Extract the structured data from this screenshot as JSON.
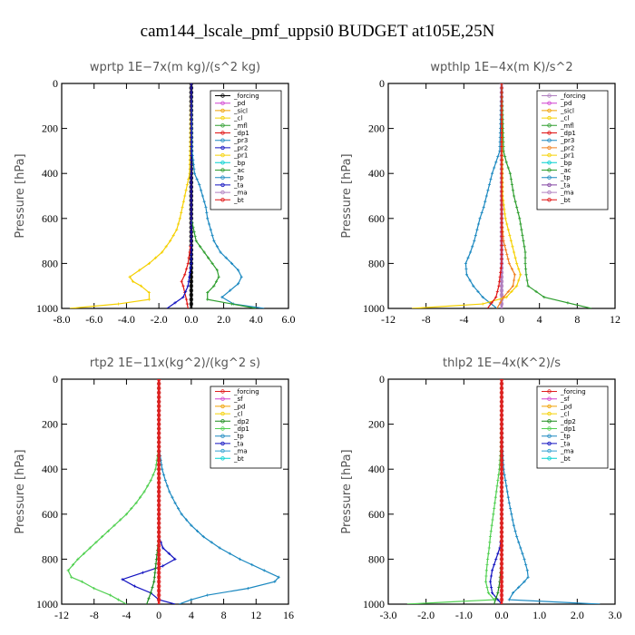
{
  "figure_title": "cam144_lscale_pmf_uppsi0  BUDGET at105E,25N",
  "chart_data": [
    {
      "type": "line",
      "title": "wprtp  1E−7x(m kg)/(s^2 kg)",
      "ylabel": "Pressure [hPa]",
      "xlim": [
        -8,
        6
      ],
      "ylim": [
        1000,
        0
      ],
      "xticks": [
        -8,
        -6,
        -4,
        -2,
        0,
        2,
        4,
        6
      ],
      "xtick_labels": [
        "-8.0",
        "-6.0",
        "-4.0",
        "-2.0",
        "0.0",
        "2.0",
        "4.0",
        "6.0"
      ],
      "yticks": [
        0,
        200,
        400,
        600,
        800,
        1000
      ],
      "ytick_labels": [
        "0",
        "200",
        "400",
        "600",
        "800",
        "1000"
      ],
      "legend_position": "top-right",
      "legend": [
        "_forcing",
        "_pd",
        "_sicl",
        "_cl",
        "_mfl",
        "_dp1",
        "_pr3",
        "_pr2",
        "_pr1",
        "_bp",
        "_ac",
        "_tp",
        "_ta",
        "_ma",
        "_bt"
      ],
      "series": [
        {
          "name": "_forcing",
          "color": "#000000",
          "p": [
            0,
            100,
            200,
            300,
            400,
            500,
            600,
            700,
            800,
            900,
            1000
          ],
          "v": [
            0,
            0,
            0,
            0,
            0,
            0,
            0,
            0,
            0,
            0,
            0
          ]
        },
        {
          "name": "_pr1",
          "color": "#f5d000",
          "p": [
            0,
            400,
            450,
            500,
            550,
            600,
            650,
            700,
            750,
            800,
            830,
            860,
            880,
            900,
            930,
            960,
            980,
            1000
          ],
          "v": [
            0,
            -0.1,
            -0.25,
            -0.4,
            -0.55,
            -0.7,
            -0.9,
            -1.3,
            -1.8,
            -2.6,
            -3.2,
            -3.8,
            -3.6,
            -3.1,
            -2.6,
            -2.6,
            -4.5,
            -7.5
          ]
        },
        {
          "name": "_tp",
          "color": "#1a88c0",
          "p": [
            0,
            300,
            400,
            450,
            500,
            550,
            600,
            650,
            700,
            750,
            800,
            830,
            860,
            890,
            920,
            950,
            980,
            1000
          ],
          "v": [
            0,
            0.05,
            0.2,
            0.5,
            0.7,
            0.9,
            1.0,
            1.2,
            1.4,
            1.8,
            2.5,
            2.9,
            3.1,
            2.9,
            2.4,
            1.9,
            2.6,
            4.5
          ]
        },
        {
          "name": "_ac",
          "color": "#2e9e2e",
          "p": [
            0,
            600,
            700,
            750,
            800,
            830,
            860,
            900,
            930,
            960,
            1000
          ],
          "v": [
            0,
            0,
            0.3,
            0.8,
            1.3,
            1.6,
            1.7,
            1.4,
            1.0,
            1.0,
            4.0
          ]
        },
        {
          "name": "_dp1",
          "color": "#e01010",
          "p": [
            0,
            700,
            750,
            800,
            850,
            880,
            900,
            930,
            960,
            1000
          ],
          "v": [
            0,
            0,
            -0.1,
            -0.2,
            -0.4,
            -0.6,
            -0.5,
            -0.4,
            -0.3,
            -0.2
          ]
        },
        {
          "name": "_ta",
          "color": "#1010c0",
          "p": [
            0,
            800,
            900,
            950,
            1000
          ],
          "v": [
            0,
            0,
            -0.2,
            -0.5,
            -1.5
          ]
        }
      ]
    },
    {
      "type": "line",
      "title": "wpthlp  1E−4x(m K)/s^2",
      "ylabel": "Pressure [hPa]",
      "xlim": [
        -12,
        12
      ],
      "ylim": [
        1000,
        0
      ],
      "xticks": [
        -12,
        -8,
        -4,
        0,
        4,
        8,
        12
      ],
      "xtick_labels": [
        "-12",
        "-8",
        "-4",
        "0",
        "4",
        "8",
        "12"
      ],
      "yticks": [
        0,
        200,
        400,
        600,
        800,
        1000
      ],
      "ytick_labels": [
        "0",
        "200",
        "400",
        "600",
        "800",
        "1000"
      ],
      "legend_position": "top-right",
      "legend": [
        "_forcing",
        "_pd",
        "_sicl",
        "_cl",
        "_mfl",
        "_dp1",
        "_pr3",
        "_pr2",
        "_pr1",
        "_bp",
        "_ac",
        "_tp",
        "_ta",
        "_ma",
        "_bt"
      ],
      "series": [
        {
          "name": "_forcing",
          "color": "#b080c0",
          "p": [
            0,
            100,
            200,
            300,
            400,
            500,
            600,
            700,
            800,
            900,
            1000
          ],
          "v": [
            0,
            0,
            0,
            0,
            0,
            0,
            0,
            0,
            0,
            0,
            0
          ]
        },
        {
          "name": "_ac",
          "color": "#2e9e2e",
          "p": [
            0,
            300,
            350,
            400,
            450,
            500,
            550,
            600,
            650,
            700,
            750,
            800,
            850,
            900,
            950,
            1000
          ],
          "v": [
            0,
            0.2,
            0.5,
            0.9,
            1.1,
            1.3,
            1.6,
            1.9,
            2.1,
            2.3,
            2.5,
            2.5,
            2.6,
            2.8,
            4.5,
            9.5
          ]
        },
        {
          "name": "_tp",
          "color": "#1a88c0",
          "p": [
            0,
            300,
            350,
            400,
            450,
            500,
            550,
            600,
            650,
            700,
            750,
            800,
            850,
            900,
            950,
            1000
          ],
          "v": [
            0,
            -0.2,
            -0.6,
            -1.0,
            -1.3,
            -1.6,
            -1.9,
            -2.3,
            -2.6,
            -2.9,
            -3.3,
            -3.8,
            -3.7,
            -3.0,
            -2.0,
            -0.5
          ]
        },
        {
          "name": "_pr1",
          "color": "#f5d000",
          "p": [
            0,
            500,
            600,
            650,
            700,
            750,
            800,
            850,
            900,
            950,
            980,
            1000
          ],
          "v": [
            0,
            0.1,
            0.4,
            0.7,
            1.0,
            1.3,
            1.6,
            2.0,
            1.6,
            0.5,
            -2.0,
            -9.5
          ]
        },
        {
          "name": "_pr2",
          "color": "#f08020",
          "p": [
            0,
            600,
            700,
            800,
            850,
            900,
            950,
            1000
          ],
          "v": [
            0,
            0,
            0.2,
            0.8,
            1.4,
            1.2,
            0.2,
            -0.5
          ]
        },
        {
          "name": "_dp1",
          "color": "#e01010",
          "p": [
            0,
            800,
            900,
            950,
            1000
          ],
          "v": [
            0,
            0,
            -0.3,
            -0.6,
            -1.5
          ]
        }
      ]
    },
    {
      "type": "line",
      "title": "rtp2  1E−11x(kg^2)/(kg^2 s)",
      "ylabel": "Pressure [hPa]",
      "xlim": [
        -12,
        16
      ],
      "ylim": [
        1000,
        0
      ],
      "xticks": [
        -12,
        -8,
        -4,
        0,
        4,
        8,
        12,
        16
      ],
      "xtick_labels": [
        "-12",
        "-8",
        "-4",
        "0",
        "4",
        "8",
        "12",
        "16"
      ],
      "yticks": [
        0,
        200,
        400,
        600,
        800,
        1000
      ],
      "ytick_labels": [
        "0",
        "200",
        "400",
        "600",
        "800",
        "1000"
      ],
      "legend_position": "top-right",
      "legend": [
        "_forcing",
        "_sf",
        "_pd",
        "_cl",
        "_dp2",
        "_dp1",
        "_tp",
        "_ta",
        "_ma",
        "_bt"
      ],
      "series": [
        {
          "name": "_dp1",
          "color": "#50d050",
          "p": [
            0,
            300,
            400,
            450,
            500,
            550,
            600,
            650,
            700,
            750,
            800,
            850,
            880,
            900,
            930,
            960,
            980,
            1000
          ],
          "v": [
            0,
            0,
            -0.4,
            -1.0,
            -1.8,
            -2.8,
            -4.0,
            -5.5,
            -7.0,
            -8.5,
            -10.0,
            -11.2,
            -10.8,
            -9.5,
            -8.0,
            -6.0,
            -5.0,
            -4.0
          ]
        },
        {
          "name": "_tp",
          "color": "#1a88c0",
          "p": [
            0,
            300,
            400,
            450,
            500,
            550,
            600,
            650,
            700,
            750,
            800,
            850,
            880,
            900,
            930,
            960,
            980,
            1000
          ],
          "v": [
            0,
            0,
            0.4,
            0.8,
            1.3,
            2.0,
            2.8,
            4.0,
            5.5,
            7.5,
            10.0,
            13.0,
            14.8,
            14.3,
            11.0,
            6.0,
            4.0,
            2.5
          ]
        },
        {
          "name": "_ta",
          "color": "#1010c0",
          "p": [
            0,
            700,
            750,
            800,
            830,
            860,
            890,
            920,
            950,
            980,
            1000
          ],
          "v": [
            0,
            0,
            0.5,
            2.0,
            0.5,
            -2.0,
            -4.5,
            -3.0,
            -1.0,
            0,
            2.0
          ]
        },
        {
          "name": "_dp2",
          "color": "#1a8a1a",
          "p": [
            0,
            700,
            800,
            900,
            950,
            1000
          ],
          "v": [
            0,
            0,
            -0.3,
            -0.6,
            -1.0,
            -1.5
          ]
        },
        {
          "name": "_forcing",
          "color": "#e02020",
          "p": [
            0,
            100,
            200,
            300,
            400,
            500,
            600,
            700,
            800,
            900,
            1000
          ],
          "v": [
            0,
            0,
            0,
            0,
            0,
            0,
            0,
            0,
            0,
            0,
            0
          ]
        }
      ]
    },
    {
      "type": "line",
      "title": "thlp2  1E−4x(K^2)/s",
      "ylabel": "Pressure [hPa]",
      "xlim": [
        -3,
        3
      ],
      "ylim": [
        1000,
        0
      ],
      "xticks": [
        -3,
        -2,
        -1,
        0,
        1,
        2,
        3
      ],
      "xtick_labels": [
        "-3.0",
        "-2.0",
        "-1.0",
        "0.0",
        "1.0",
        "2.0",
        "3.0"
      ],
      "yticks": [
        0,
        200,
        400,
        600,
        800,
        1000
      ],
      "ytick_labels": [
        "0",
        "200",
        "400",
        "600",
        "800",
        "1000"
      ],
      "legend_position": "top-right",
      "legend": [
        "_forcing",
        "_sf",
        "_pd",
        "_cl",
        "_dp2",
        "_dp1",
        "_tp",
        "_ta",
        "_ma",
        "_bt"
      ],
      "series": [
        {
          "name": "_dp1",
          "color": "#50d050",
          "p": [
            0,
            300,
            400,
            450,
            500,
            550,
            600,
            650,
            700,
            750,
            800,
            850,
            900,
            950,
            980,
            1000
          ],
          "v": [
            0,
            -0.02,
            -0.06,
            -0.1,
            -0.14,
            -0.18,
            -0.22,
            -0.26,
            -0.3,
            -0.33,
            -0.37,
            -0.4,
            -0.42,
            -0.35,
            -0.2,
            -2.5
          ]
        },
        {
          "name": "_tp",
          "color": "#1a88c0",
          "p": [
            0,
            300,
            400,
            450,
            500,
            550,
            600,
            650,
            700,
            750,
            800,
            850,
            880,
            900,
            950,
            980,
            1000
          ],
          "v": [
            0,
            0.02,
            0.05,
            0.1,
            0.15,
            0.2,
            0.26,
            0.32,
            0.4,
            0.5,
            0.6,
            0.68,
            0.7,
            0.6,
            0.3,
            0.2,
            2.6
          ]
        },
        {
          "name": "_ta",
          "color": "#1010c0",
          "p": [
            0,
            700,
            750,
            800,
            850,
            900,
            950,
            980,
            1000
          ],
          "v": [
            0,
            0,
            -0.05,
            -0.15,
            -0.25,
            -0.3,
            -0.25,
            -0.1,
            0
          ]
        },
        {
          "name": "_dp2",
          "color": "#1a8a1a",
          "p": [
            0,
            800,
            900,
            950,
            1000
          ],
          "v": [
            0,
            0,
            -0.05,
            -0.1,
            -0.2
          ]
        },
        {
          "name": "_forcing",
          "color": "#e02020",
          "p": [
            0,
            100,
            200,
            300,
            400,
            500,
            600,
            700,
            800,
            900,
            1000
          ],
          "v": [
            0,
            0,
            0,
            0,
            0,
            0,
            0,
            0,
            0,
            0,
            0
          ]
        }
      ]
    }
  ]
}
